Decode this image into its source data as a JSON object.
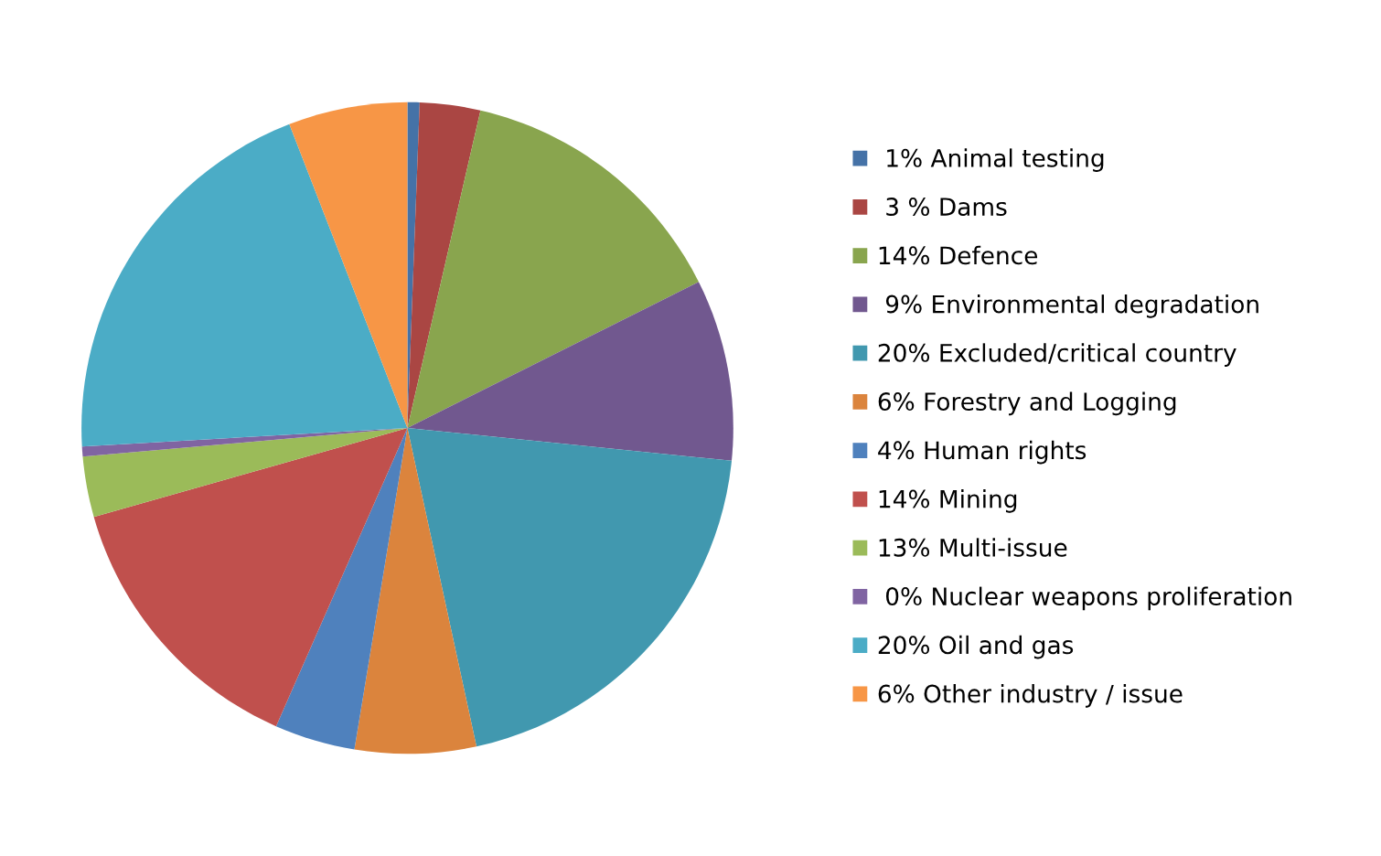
{
  "chart_data": {
    "type": "pie",
    "categories": [
      " 1% Animal testing",
      " 3 % Dams",
      "14% Defence",
      " 9% Environmental degradation",
      "20% Excluded/critical country",
      "6% Forestry and Logging",
      "4% Human rights",
      "14% Mining",
      "13% Multi-issue",
      " 0% Nuclear weapons proliferation",
      "20% Oil and gas",
      "6% Other industry / issue"
    ],
    "values": [
      0.6,
      3,
      14,
      9,
      20,
      6,
      4,
      14,
      3,
      0.5,
      20,
      5.9
    ],
    "colors": [
      "#4572a7",
      "#aa4643",
      "#89a54e",
      "#71588f",
      "#4198af",
      "#db843d",
      "#4f81bd",
      "#c0504d",
      "#9bbb59",
      "#8064a2",
      "#4bacc6",
      "#f79646"
    ],
    "legend": "right"
  }
}
